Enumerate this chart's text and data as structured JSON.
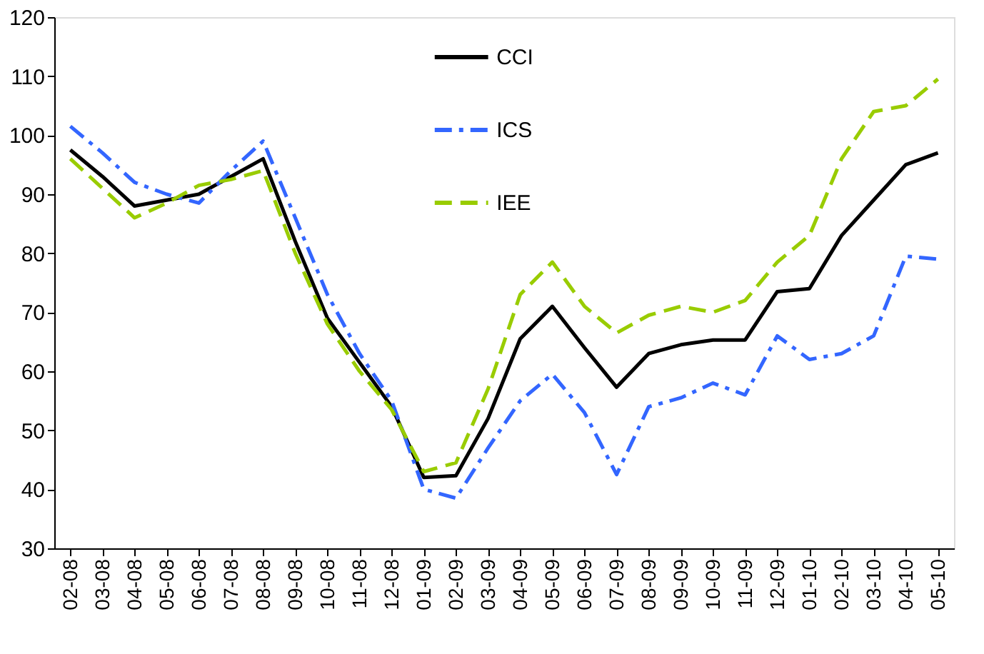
{
  "chart_data": {
    "type": "line",
    "categories": [
      "02-08",
      "03-08",
      "04-08",
      "05-08",
      "06-08",
      "07-08",
      "08-08",
      "09-08",
      "10-08",
      "11-08",
      "12-08",
      "01-09",
      "02-09",
      "03-09",
      "04-09",
      "05-09",
      "06-09",
      "07-09",
      "08-09",
      "09-09",
      "10-09",
      "11-09",
      "12-09",
      "01-10",
      "02-10",
      "03-10",
      "04-10",
      "05-10"
    ],
    "series": [
      {
        "name": "CCI",
        "color": "#000000",
        "line_style": "solid",
        "values": [
          97.5,
          93,
          88,
          89,
          90,
          93,
          96,
          82,
          69,
          61.5,
          54,
          42,
          42.3,
          52,
          65.5,
          71,
          64,
          57.3,
          63,
          64.5,
          65.3,
          65.3,
          73.5,
          74,
          83,
          89,
          95,
          97
        ]
      },
      {
        "name": "ICS",
        "color": "#3366ff",
        "line_style": "dashdot",
        "values": [
          101.5,
          97,
          92,
          90,
          88.5,
          94,
          99,
          86,
          73,
          63,
          55,
          40,
          38.5,
          47,
          55,
          59.5,
          53,
          42.5,
          54,
          55.5,
          58,
          56,
          66,
          62,
          63,
          66,
          79.5,
          79
        ]
      },
      {
        "name": "IEE",
        "color": "#99cc00",
        "line_style": "dashed",
        "values": [
          96,
          91,
          86,
          88.5,
          91.5,
          92.5,
          94,
          80,
          68,
          60,
          53.5,
          43,
          44.5,
          57,
          73,
          78.5,
          71,
          66.5,
          69.5,
          71,
          70,
          72,
          78.5,
          83,
          96,
          104,
          105,
          109.5
        ]
      }
    ],
    "ylim": [
      30,
      120
    ],
    "yticks": [
      30,
      40,
      50,
      60,
      70,
      80,
      90,
      100,
      110,
      120
    ],
    "grid": false,
    "legend": "top",
    "marker": "none"
  }
}
